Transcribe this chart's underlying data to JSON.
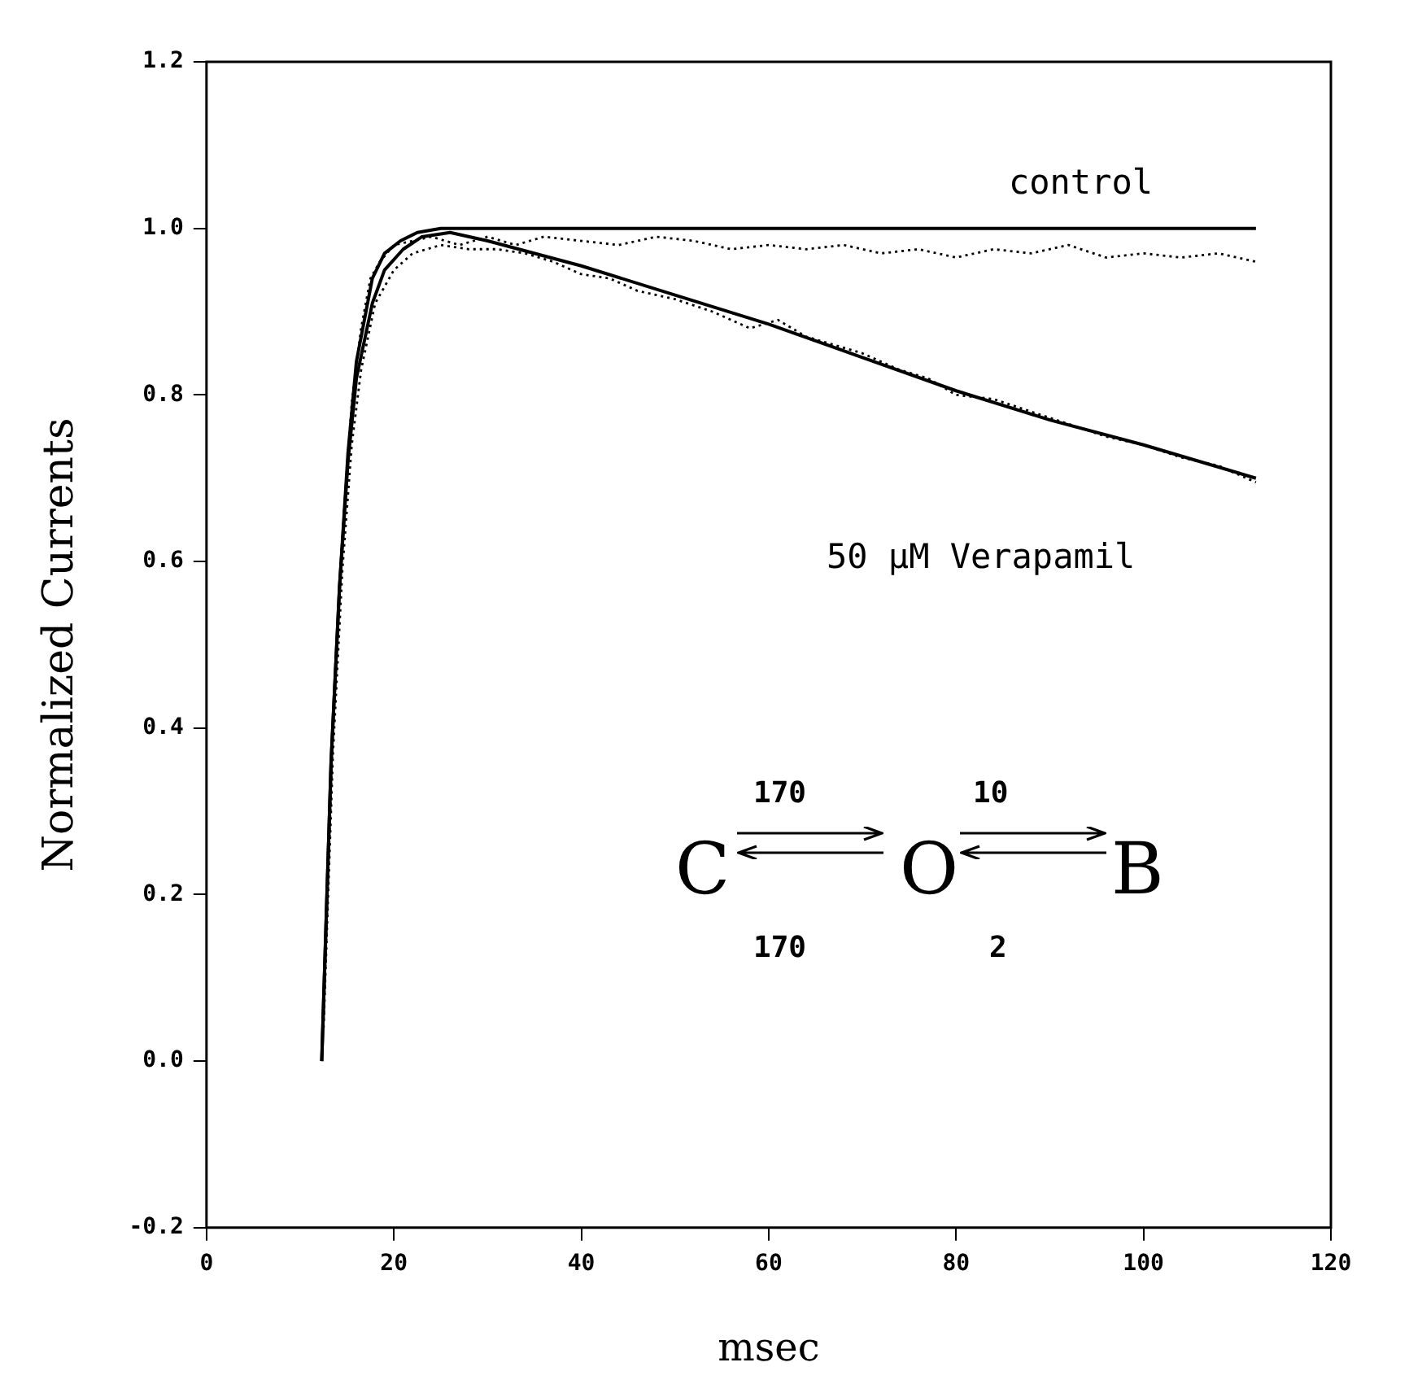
{
  "chart_data": {
    "type": "line",
    "xlabel": "msec",
    "ylabel": "Normalized Currents",
    "xlim": [
      0,
      120
    ],
    "xticks": [
      0,
      20,
      40,
      60,
      80,
      100,
      120
    ],
    "ylim": [
      -0.2,
      1.2
    ],
    "yticks": [
      {
        "value": -0.2,
        "label": "-0.2"
      },
      {
        "value": 0,
        "label": "0.0"
      },
      {
        "value": 0.2,
        "label": "0.2"
      },
      {
        "value": 0.4,
        "label": "0.4"
      },
      {
        "value": 0.6,
        "label": "0.6"
      },
      {
        "value": 0.8,
        "label": "0.8"
      },
      {
        "value": 1,
        "label": "1.0"
      },
      {
        "value": 1.2,
        "label": "1.2"
      }
    ],
    "grid": false,
    "legend": false,
    "marker": "none",
    "series": [
      {
        "color": "#000000",
        "line_style": "solid",
        "x": [
          12.3,
          13.3,
          14.2,
          15.1,
          16,
          17.7,
          19,
          20.7,
          22.5,
          25,
          30,
          112
        ],
        "values": [
          0,
          0.36,
          0.57,
          0.73,
          0.84,
          0.94,
          0.97,
          0.985,
          0.995,
          1.0,
          1.0,
          1.0
        ]
      },
      {
        "color": "#000000",
        "line_style": "dotted",
        "x": [
          12.5,
          13.5,
          14.5,
          15.5,
          16.5,
          17.5,
          18.5,
          20,
          22,
          24,
          27,
          30,
          33,
          36,
          40,
          44,
          48,
          52,
          56,
          60,
          64,
          68,
          72,
          76,
          80,
          84,
          88,
          92,
          96,
          100,
          104,
          108,
          112
        ],
        "values": [
          0.05,
          0.4,
          0.63,
          0.79,
          0.88,
          0.94,
          0.96,
          0.98,
          0.985,
          0.99,
          0.98,
          0.99,
          0.98,
          0.99,
          0.985,
          0.98,
          0.99,
          0.985,
          0.975,
          0.98,
          0.975,
          0.98,
          0.97,
          0.975,
          0.965,
          0.975,
          0.97,
          0.98,
          0.965,
          0.97,
          0.965,
          0.97,
          0.96
        ]
      },
      {
        "color": "#000000",
        "line_style": "solid",
        "x": [
          12.3,
          13.3,
          14.2,
          15.1,
          16,
          17.7,
          19,
          21,
          23,
          26,
          30,
          40,
          50,
          60,
          70,
          80,
          90,
          100,
          112
        ],
        "values": [
          0,
          0.36,
          0.57,
          0.72,
          0.82,
          0.91,
          0.95,
          0.975,
          0.99,
          0.995,
          0.985,
          0.955,
          0.92,
          0.885,
          0.845,
          0.805,
          0.77,
          0.74,
          0.7
        ]
      },
      {
        "color": "#000000",
        "line_style": "dotted",
        "x": [
          12.5,
          13.5,
          14.5,
          15.5,
          16.5,
          18,
          20,
          22,
          25,
          28,
          31,
          34,
          37,
          40,
          43,
          46,
          50,
          54,
          58,
          61,
          64,
          67,
          70,
          74,
          77,
          80,
          84,
          88,
          92,
          96,
          100,
          104,
          108,
          112
        ],
        "values": [
          0.04,
          0.37,
          0.59,
          0.74,
          0.83,
          0.91,
          0.95,
          0.97,
          0.98,
          0.975,
          0.975,
          0.97,
          0.96,
          0.945,
          0.94,
          0.925,
          0.915,
          0.9,
          0.88,
          0.89,
          0.87,
          0.86,
          0.85,
          0.83,
          0.82,
          0.8,
          0.795,
          0.78,
          0.765,
          0.75,
          0.74,
          0.725,
          0.715,
          0.695
        ]
      }
    ],
    "annotations": [
      "control",
      "50 μM Verapamil",
      "C",
      "O",
      "B",
      "170",
      "170",
      "10",
      "2"
    ]
  }
}
